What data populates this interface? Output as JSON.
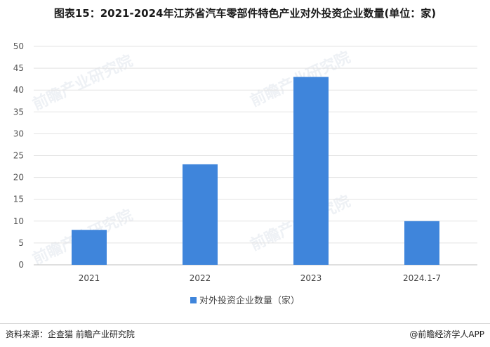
{
  "title": "图表15：2021-2024年江苏省汽车零部件特色产业对外投资企业数量(单位：家)",
  "chart_data": {
    "type": "bar",
    "categories": [
      "2021",
      "2022",
      "2023",
      "2024.1-7"
    ],
    "series": [
      {
        "name": "对外投资企业数量（家）",
        "values": [
          8,
          23,
          43,
          10
        ],
        "color": "#3f85db"
      }
    ],
    "ylim": [
      0,
      50
    ],
    "yticks": [
      0,
      5,
      10,
      15,
      20,
      25,
      30,
      35,
      40,
      45,
      50
    ],
    "grid": true,
    "legend_position": "bottom"
  },
  "footer": {
    "source": "资料来源：企查猫 前瞻产业研究院",
    "brand": "@前瞻经济学人APP"
  },
  "watermark": "前瞻产业研究院"
}
